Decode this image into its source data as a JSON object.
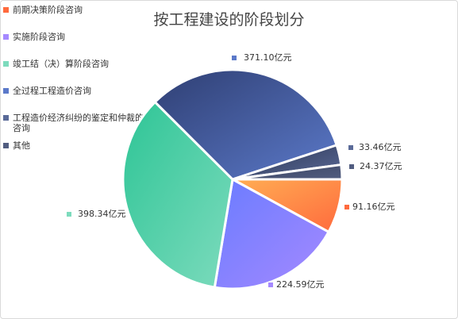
{
  "chart_data": {
    "type": "pie",
    "title": "按工程建设的阶段划分",
    "unit": "亿元",
    "legend_position": "top-left",
    "slices": [
      {
        "name": "前期决策阶段咨询",
        "value": 91.16,
        "label": "91.16亿元",
        "color_start": "#ffae54",
        "color_end": "#ff6a3d"
      },
      {
        "name": "实施阶段咨询",
        "value": 224.59,
        "label": "224.59亿元",
        "color_start": "#6a7cff",
        "color_end": "#a589ff"
      },
      {
        "name": "竣工结（决）算阶段咨询",
        "value": 398.34,
        "label": "398.34亿元",
        "color_start": "#2ec596",
        "color_end": "#7ddbbd"
      },
      {
        "name": "全过程工程造价咨询",
        "value": 371.1,
        "label": "371.10亿元",
        "color_start": "#2f3f73",
        "color_end": "#5b79c9"
      },
      {
        "name": "工程造价经济纠纷的鉴定和仲裁的咨询",
        "value": 33.46,
        "label": "33.46亿元",
        "color_start": "#2a3450",
        "color_end": "#5a6a98"
      },
      {
        "name": "其他",
        "value": 24.37,
        "label": "24.37亿元",
        "color_start": "#3a4461",
        "color_end": "#515d80"
      }
    ]
  }
}
